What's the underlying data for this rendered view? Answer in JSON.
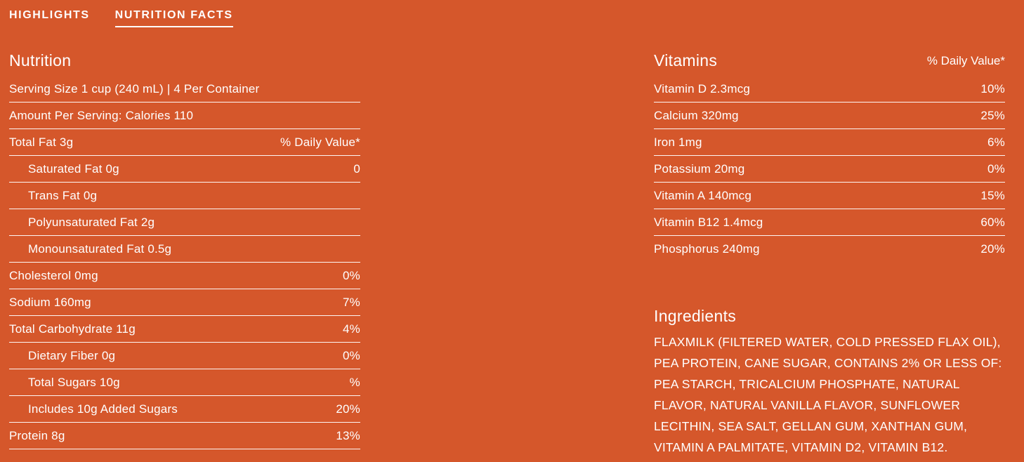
{
  "colors": {
    "background": "#D5572B",
    "text": "#FFFFFF"
  },
  "tabs": [
    {
      "label": "HIGHLIGHTS",
      "active": false
    },
    {
      "label": "NUTRITION FACTS",
      "active": true
    }
  ],
  "nutrition": {
    "title": "Nutrition",
    "rows": [
      {
        "label": "Serving Size 1 cup (240 mL) | 4 Per Container",
        "value": "",
        "indent": false
      },
      {
        "label": "Amount Per Serving: Calories 110",
        "value": "",
        "indent": false
      },
      {
        "label": "Total Fat 3g",
        "value": "% Daily Value*",
        "indent": false
      },
      {
        "label": "Saturated Fat 0g",
        "value": "0",
        "indent": true
      },
      {
        "label": "Trans Fat 0g",
        "value": "",
        "indent": true
      },
      {
        "label": "Polyunsaturated Fat 2g",
        "value": "",
        "indent": true
      },
      {
        "label": "Monounsaturated Fat 0.5g",
        "value": "",
        "indent": true
      },
      {
        "label": "Cholesterol 0mg",
        "value": "0%",
        "indent": false
      },
      {
        "label": "Sodium 160mg",
        "value": "7%",
        "indent": false
      },
      {
        "label": "Total Carbohydrate 11g",
        "value": "4%",
        "indent": false
      },
      {
        "label": "Dietary Fiber 0g",
        "value": "0%",
        "indent": true
      },
      {
        "label": "Total Sugars 10g",
        "value": "%",
        "indent": true
      },
      {
        "label": "Includes 10g Added Sugars",
        "value": "20%",
        "indent": true
      },
      {
        "label": "Protein 8g",
        "value": "13%",
        "indent": false
      }
    ]
  },
  "vitamins": {
    "title": "Vitamins",
    "daily_value_label": "% Daily Value*",
    "rows": [
      {
        "label": "Vitamin D 2.3mcg",
        "value": "10%"
      },
      {
        "label": "Calcium 320mg",
        "value": "25%"
      },
      {
        "label": "Iron 1mg",
        "value": "6%"
      },
      {
        "label": "Potassium 20mg",
        "value": "0%"
      },
      {
        "label": "Vitamin A 140mcg",
        "value": "15%"
      },
      {
        "label": "Vitamin B12 1.4mcg",
        "value": "60%"
      },
      {
        "label": "Phosphorus 240mg",
        "value": "20%"
      }
    ]
  },
  "ingredients": {
    "title": "Ingredients",
    "text": "FLAXMILK (FILTERED WATER, COLD PRESSED FLAX OIL), PEA PROTEIN, CANE SUGAR, CONTAINS 2% OR LESS OF: PEA STARCH, TRICALCIUM PHOSPHATE, NATURAL FLAVOR, NATURAL VANILLA FLAVOR, SUNFLOWER LECITHIN, SEA SALT, GELLAN GUM, XANTHAN GUM, VITAMIN A PALMITATE, VITAMIN D2, VITAMIN B12."
  }
}
